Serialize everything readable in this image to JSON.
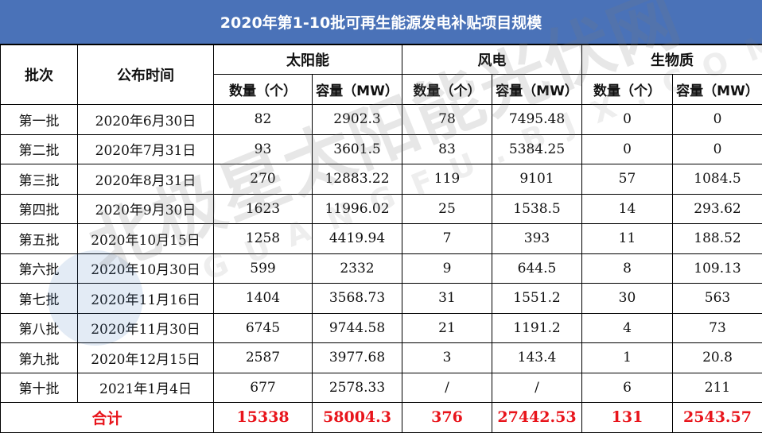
{
  "title": "2020年第1-10批可再生能源发电补贴项目规模",
  "headers": {
    "batch": "批次",
    "date": "公布时间",
    "groups": [
      "太阳能",
      "风电",
      "生物质"
    ],
    "count": "数量（个）",
    "capacity": "容量（MW）"
  },
  "rows": [
    [
      "第一批",
      "2020年6月30日",
      "82",
      "2902.3",
      "78",
      "7495.48",
      "0",
      "0"
    ],
    [
      "第二批",
      "2020年7月31日",
      "93",
      "3601.5",
      "83",
      "5384.25",
      "0",
      "0"
    ],
    [
      "第三批",
      "2020年8月31日",
      "270",
      "12883.22",
      "119",
      "9101",
      "57",
      "1084.5"
    ],
    [
      "第四批",
      "2020年9月30日",
      "1623",
      "11996.02",
      "25",
      "1538.5",
      "14",
      "293.62"
    ],
    [
      "第五批",
      "2020年10月15日",
      "1258",
      "4419.94",
      "7",
      "393",
      "11",
      "188.52"
    ],
    [
      "第六批",
      "2020年10月30日",
      "599",
      "2332",
      "9",
      "644.5",
      "8",
      "109.13"
    ],
    [
      "第七批",
      "2020年11月16日",
      "1404",
      "3568.73",
      "31",
      "1551.2",
      "30",
      "563"
    ],
    [
      "第八批",
      "2020年11月30日",
      "6745",
      "9744.58",
      "21",
      "1191.2",
      "4",
      "73"
    ],
    [
      "第九批",
      "2020年12月15日",
      "2587",
      "3977.68",
      "3",
      "143.4",
      "1",
      "20.8"
    ],
    [
      "第十批",
      "2021年1月4日",
      "677",
      "2578.33",
      "/",
      "/",
      "6",
      "211"
    ]
  ],
  "total": {
    "label": "合计",
    "values": [
      "15338",
      "58004.3",
      "376",
      "27442.53",
      "131",
      "2543.57"
    ]
  },
  "watermark": {
    "cn": "北极星太阳能光伏网",
    "en": "GUANGFU.BJX.COM.CN"
  },
  "colors": {
    "title_bg": "#4a72b8",
    "total_text": "#e8141b"
  }
}
